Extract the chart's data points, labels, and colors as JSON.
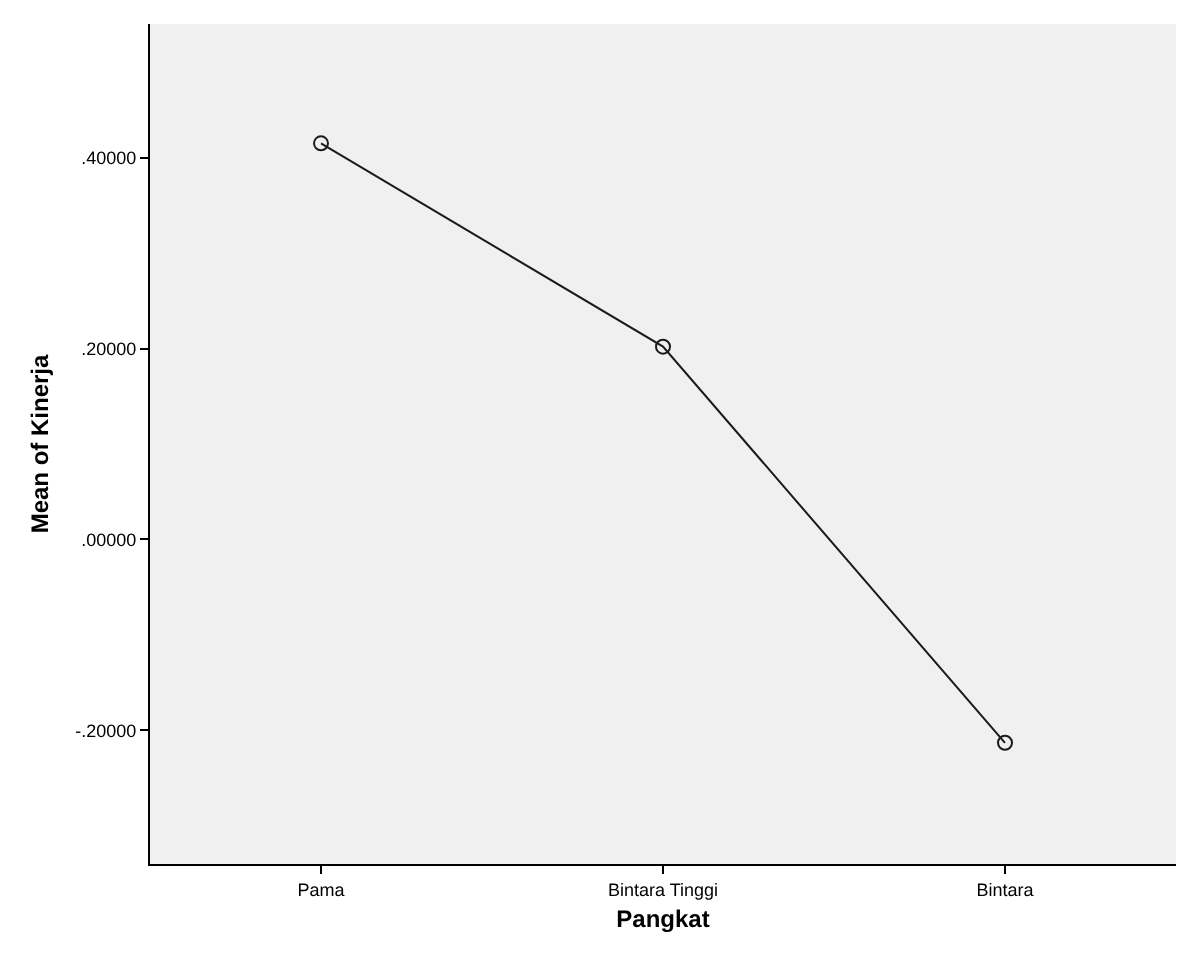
{
  "chart_data": {
    "type": "line",
    "xlabel": "Pangkat",
    "ylabel": "Mean of Kinerja",
    "categories": [
      "Pama",
      "Bintara Tinggi",
      "Bintara"
    ],
    "series": [
      {
        "color": "#1a1a1a",
        "values": [
          0.415,
          0.202,
          -0.213
        ]
      }
    ],
    "ylim": [
      -0.34,
      0.54
    ],
    "yticks": [
      {
        "value": -0.2,
        "label": "-.20000"
      },
      {
        "value": 0,
        "label": ".00000"
      },
      {
        "value": 0.2,
        "label": ".20000"
      },
      {
        "value": 0.4,
        "label": ".40000"
      }
    ],
    "grid": false,
    "marker": "circle",
    "line_style": "solid"
  }
}
